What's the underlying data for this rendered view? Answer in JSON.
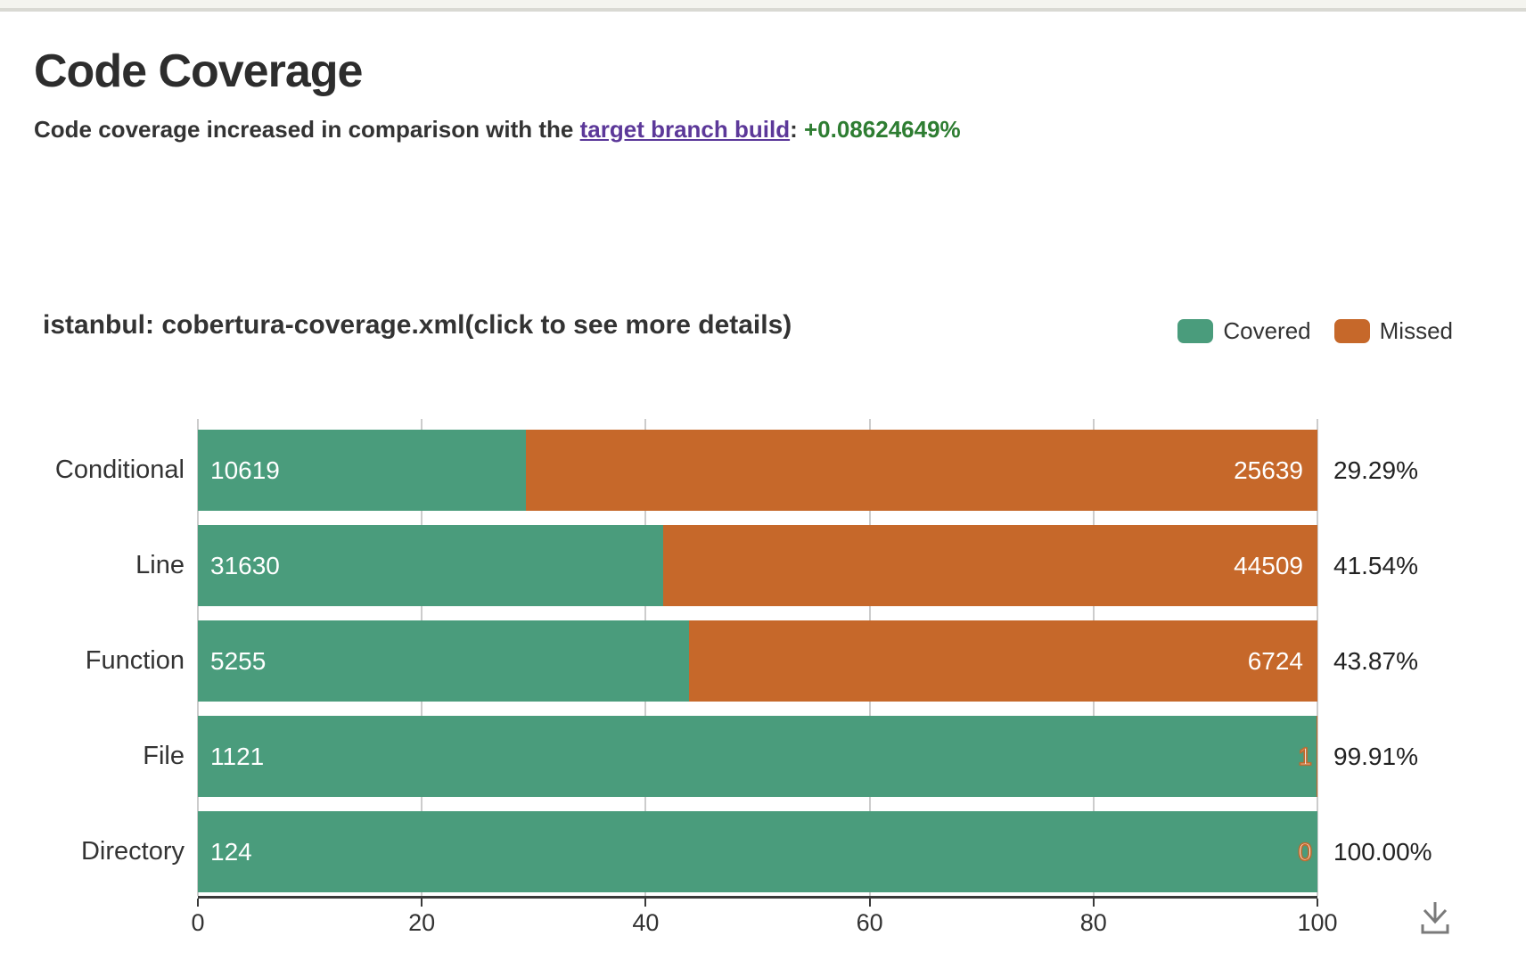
{
  "page": {
    "title": "Code Coverage",
    "summary": {
      "prefix": "Code coverage increased in comparison with the ",
      "link_text": "target branch build",
      "separator": ": ",
      "delta": "+0.08624649%"
    }
  },
  "chart": {
    "title": "istanbul: cobertura-coverage.xml(click to see more details)",
    "legend": {
      "position": "top-right",
      "items": [
        {
          "label": "Covered",
          "color": "#4a9c7c"
        },
        {
          "label": "Missed",
          "color": "#c6682a"
        }
      ]
    }
  },
  "chart_data": {
    "type": "bar",
    "orientation": "horizontal",
    "stacked": true,
    "normalized_to_percent": true,
    "title": "istanbul: cobertura-coverage.xml(click to see more details)",
    "categories": [
      "Conditional",
      "Line",
      "Function",
      "File",
      "Directory"
    ],
    "series": [
      {
        "name": "Covered",
        "color": "#4a9c7c",
        "values": [
          10619,
          31630,
          5255,
          1121,
          124
        ]
      },
      {
        "name": "Missed",
        "color": "#c6682a",
        "values": [
          25639,
          44509,
          6724,
          1,
          0
        ]
      }
    ],
    "coverage_percent_labels": [
      "29.29%",
      "41.54%",
      "43.87%",
      "99.91%",
      "100.00%"
    ],
    "coverage_percent_values": [
      29.29,
      41.54,
      43.87,
      99.91,
      100.0
    ],
    "x_axis": {
      "range": [
        0,
        100
      ],
      "ticks": [
        0,
        20,
        40,
        60,
        80,
        100
      ],
      "labels": [
        "0",
        "20",
        "40",
        "60",
        "80",
        "100"
      ],
      "grid": true
    },
    "ylabel": "",
    "xlabel": ""
  },
  "icons": {
    "download": "download-arrow-with-tray"
  },
  "colors": {
    "covered": "#4a9c7c",
    "missed": "#c6682a",
    "delta_green": "#2e7d32",
    "link_purple": "#5c3899",
    "axis": "#3a3a3a",
    "grid": "#cccccc"
  }
}
